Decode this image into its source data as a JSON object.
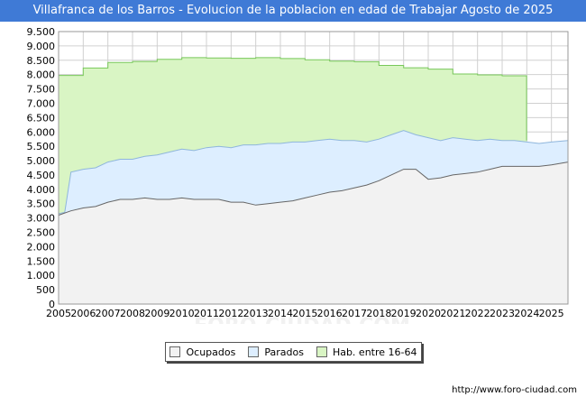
{
  "header": {
    "title": "Villafranca de los Barros - Evolucion de la poblacion en edad de Trabajar Agosto de 2025"
  },
  "footer": {
    "url": "http://www.foro-ciudad.com"
  },
  "watermark": "FORO-CIUDAD.COM",
  "colors": {
    "title_bar": "#3f7ad6",
    "ocupados_fill": "#f2f2f2",
    "ocupados_line": "#666666",
    "parados_fill": "#ddeeff",
    "parados_line": "#8fb6dc",
    "hab_fill": "#d9f5c4",
    "hab_line": "#78c85a",
    "grid": "#d0d0d0"
  },
  "chart_data": {
    "type": "area",
    "title": "Villafranca de los Barros - Evolucion de la poblacion en edad de Trabajar Agosto de 2025",
    "xlabel": "",
    "ylabel": "",
    "xlim": [
      2005,
      2025.67
    ],
    "ylim": [
      0,
      9500
    ],
    "y_ticks": [
      0,
      500,
      1000,
      1500,
      2000,
      2500,
      3000,
      3500,
      4000,
      4500,
      5000,
      5500,
      6000,
      6500,
      7000,
      7500,
      8000,
      8500,
      9000,
      9500
    ],
    "y_tick_labels": [
      "0",
      "500",
      "1.000",
      "1.500",
      "2.000",
      "2.500",
      "3.000",
      "3.500",
      "4.000",
      "4.500",
      "5.000",
      "5.500",
      "6.000",
      "6.500",
      "7.000",
      "7.500",
      "8.000",
      "8.500",
      "9.000",
      "9.500"
    ],
    "x_tick_labels": [
      "2005",
      "2006",
      "2007",
      "2008",
      "2009",
      "2010",
      "2011",
      "2012",
      "2013",
      "2014",
      "2015",
      "2016",
      "2017",
      "2018",
      "2019",
      "2020",
      "2021",
      "2022",
      "2023",
      "2024",
      "2025"
    ],
    "legend_position": "bottom",
    "series": [
      {
        "name": "Hab. entre 16-64",
        "kind": "step",
        "x": [
          2005,
          2006,
          2007,
          2008,
          2009,
          2010,
          2011,
          2012,
          2013,
          2014,
          2015,
          2016,
          2017,
          2018,
          2019,
          2020,
          2021,
          2022,
          2023,
          2023.99
        ],
        "values": [
          7970,
          8230,
          8420,
          8460,
          8530,
          8590,
          8580,
          8570,
          8590,
          8560,
          8520,
          8470,
          8450,
          8320,
          8240,
          8190,
          8020,
          7990,
          7960,
          7960
        ]
      },
      {
        "name": "Parados",
        "kind": "line",
        "x": [
          2005,
          2005.25,
          2005.5,
          2006,
          2006.5,
          2007,
          2007.5,
          2008,
          2008.5,
          2009,
          2009.5,
          2010,
          2010.5,
          2011,
          2011.5,
          2012,
          2012.5,
          2013,
          2013.5,
          2014,
          2014.5,
          2015,
          2015.5,
          2016,
          2016.5,
          2017,
          2017.5,
          2018,
          2018.5,
          2019,
          2019.5,
          2020,
          2020.5,
          2021,
          2021.5,
          2022,
          2022.5,
          2023,
          2023.5,
          2024,
          2024.5,
          2025,
          2025.67
        ],
        "values": [
          3150,
          3200,
          4600,
          4700,
          4750,
          4950,
          5050,
          5050,
          5150,
          5200,
          5300,
          5400,
          5350,
          5450,
          5500,
          5450,
          5550,
          5550,
          5600,
          5600,
          5650,
          5650,
          5700,
          5750,
          5700,
          5700,
          5650,
          5750,
          5900,
          6050,
          5900,
          5800,
          5700,
          5800,
          5750,
          5700,
          5750,
          5700,
          5700,
          5650,
          5600,
          5650,
          5700
        ]
      },
      {
        "name": "Ocupados",
        "kind": "line",
        "x": [
          2005,
          2005.5,
          2006,
          2006.5,
          2007,
          2007.5,
          2008,
          2008.5,
          2009,
          2009.5,
          2010,
          2010.5,
          2011,
          2011.5,
          2012,
          2012.5,
          2013,
          2013.5,
          2014,
          2014.5,
          2015,
          2015.5,
          2016,
          2016.5,
          2017,
          2017.5,
          2018,
          2018.5,
          2019,
          2019.5,
          2020,
          2020.5,
          2021,
          2021.5,
          2022,
          2022.5,
          2023,
          2023.5,
          2024,
          2024.5,
          2025,
          2025.67
        ],
        "values": [
          3100,
          3250,
          3350,
          3400,
          3550,
          3650,
          3650,
          3700,
          3650,
          3650,
          3700,
          3650,
          3650,
          3650,
          3550,
          3550,
          3450,
          3500,
          3550,
          3600,
          3700,
          3800,
          3900,
          3950,
          4050,
          4150,
          4300,
          4500,
          4700,
          4700,
          4350,
          4400,
          4500,
          4550,
          4600,
          4700,
          4800,
          4800,
          4800,
          4800,
          4850,
          4950
        ]
      }
    ]
  },
  "legend": [
    {
      "key": "ocupados",
      "label": "Ocupados"
    },
    {
      "key": "parados",
      "label": "Parados"
    },
    {
      "key": "hab",
      "label": "Hab. entre 16-64"
    }
  ]
}
